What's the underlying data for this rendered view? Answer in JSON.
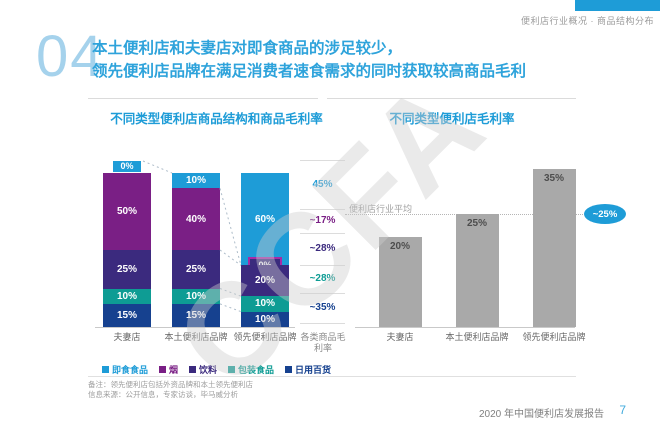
{
  "header": {
    "section_label": "便利店行业概况 · 商品结构分布",
    "accent_color": "#1E9CD7"
  },
  "headline": {
    "number": "04",
    "line1": "本土便利店和夫妻店对即食商品的涉足较少，",
    "line2": "领先便利店品牌在满足消费者速食需求的同时获取较高商品毛利"
  },
  "watermark": "CCFA",
  "chart_data": [
    {
      "type": "stacked-bar",
      "title": "不同类型便利店商品结构和商品毛利率",
      "categories": [
        "夫妻店",
        "本土便利店品牌",
        "领先便利店品牌"
      ],
      "unit": "%",
      "ylim": [
        0,
        100
      ],
      "legend": [
        {
          "label": "即食食品",
          "color": "#1E9CD7"
        },
        {
          "label": "烟",
          "color": "#7A1F85"
        },
        {
          "label": "饮料",
          "color": "#3B2A7E"
        },
        {
          "label": "包装食品",
          "color": "#0E9C94"
        },
        {
          "label": "日用百货",
          "color": "#16418F"
        }
      ],
      "series": [
        {
          "name": "即食食品",
          "values": [
            0,
            10,
            60
          ]
        },
        {
          "name": "烟",
          "values": [
            50,
            40,
            0
          ]
        },
        {
          "name": "饮料",
          "values": [
            25,
            25,
            20
          ]
        },
        {
          "name": "包装食品",
          "values": [
            10,
            10,
            10
          ]
        },
        {
          "name": "日用百货",
          "values": [
            15,
            15,
            10
          ]
        }
      ],
      "margin_column": {
        "header": "各类商品毛利率",
        "values": [
          "45%",
          "~17%",
          "~28%",
          "~28%",
          "~35%"
        ]
      }
    },
    {
      "type": "bar",
      "title": "不同类型便利店毛利率",
      "categories": [
        "夫妻店",
        "本土便利店品牌",
        "领先便利店品牌"
      ],
      "values": [
        20,
        25,
        35
      ],
      "unit": "%",
      "bar_color": "#A9A9A9",
      "average_label": "便利店行业平均",
      "average_value": "~25%"
    }
  ],
  "footnotes": [
    "备注：领先便利店包括外资品牌和本土领先便利店",
    "信息来源：公开信息，专家访谈，毕马威分析"
  ],
  "footer": {
    "report_title": "2020 年中国便利店发展报告",
    "page_number": "7"
  }
}
